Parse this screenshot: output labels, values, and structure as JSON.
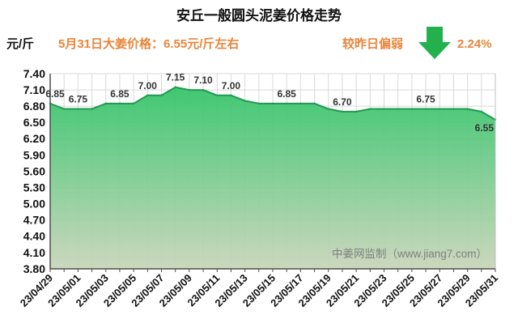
{
  "header": {
    "price_note": "5月31日大姜价格：6.55元/斤左右",
    "trend_text": "较昨日偏弱",
    "trend_icon": "arrow-down-icon",
    "change_percent": "2.24%"
  },
  "watermark": "中姜网监制（www.jiang7.com）",
  "colors": {
    "accent_text": "#E9853A",
    "arrow": "#22B14C",
    "line": "#1E9B4F",
    "area_top": "#34C46A",
    "area_bottom": "#C9D5BA",
    "grid": "#D9D9D9",
    "axis": "#4D4D4D",
    "text": "#111111",
    "data_label": "#333333",
    "watermark": "#808080"
  },
  "chart_data": {
    "type": "area",
    "title": "安丘一般圆头泥姜价格走势",
    "xlabel": "",
    "ylabel": "元/斤",
    "ylim": [
      3.8,
      7.4
    ],
    "yticks": [
      "3.80",
      "4.10",
      "4.40",
      "4.70",
      "5.00",
      "5.30",
      "5.60",
      "5.90",
      "6.20",
      "6.50",
      "6.80",
      "7.10",
      "7.40"
    ],
    "grid": true,
    "categories": [
      "23/04/29",
      null,
      "23/05/01",
      null,
      "23/05/03",
      null,
      "23/05/05",
      null,
      "23/05/07",
      null,
      "23/05/09",
      null,
      "23/05/11",
      null,
      "23/05/13",
      null,
      "23/05/15",
      null,
      "23/05/17",
      null,
      "23/05/19",
      null,
      "23/05/21",
      null,
      "23/05/23",
      null,
      "23/05/25",
      null,
      "23/05/27",
      null,
      "23/05/29",
      null,
      "23/05/31"
    ],
    "series": [
      {
        "values": [
          6.85,
          6.75,
          6.75,
          6.75,
          6.85,
          6.85,
          6.85,
          7.0,
          7.0,
          7.15,
          7.1,
          7.1,
          7.0,
          7.0,
          6.9,
          6.85,
          6.85,
          6.85,
          6.85,
          6.85,
          6.75,
          6.7,
          6.7,
          6.75,
          6.75,
          6.75,
          6.75,
          6.75,
          6.75,
          6.75,
          6.75,
          6.7,
          6.55
        ],
        "labels": [
          "6.85",
          null,
          "6.75",
          null,
          null,
          "6.85",
          null,
          "7.00",
          null,
          "7.15",
          null,
          "7.10",
          null,
          "7.00",
          null,
          null,
          null,
          "6.85",
          null,
          null,
          null,
          "6.70",
          null,
          null,
          null,
          null,
          null,
          "6.75",
          null,
          null,
          null,
          null,
          "6.55"
        ]
      }
    ]
  }
}
